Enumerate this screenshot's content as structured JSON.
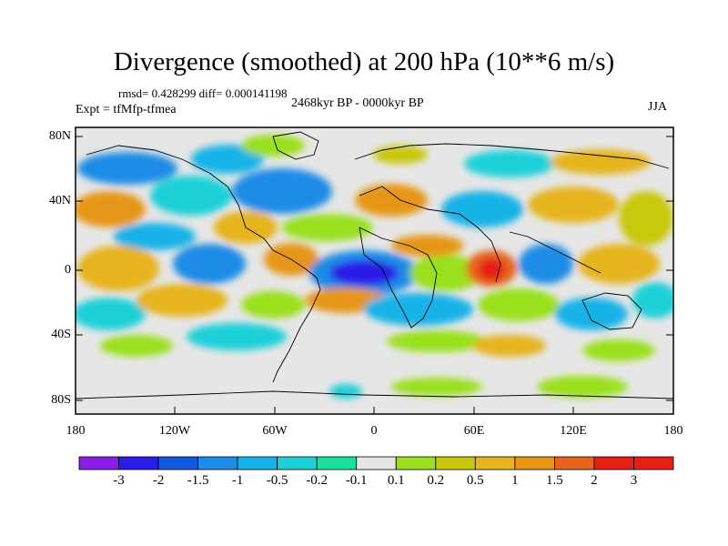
{
  "map": {
    "title": "Divergence (smoothed) at 200 hPa (10**6 m/s)",
    "stats": "rmsd= 0.428299 diff= 0.000141198",
    "experiment": "Expt = tfMfp-tfmea",
    "period": "2468kyr BP - 0000kyr BP",
    "season": "JJA",
    "lat_ticks": [
      "80N",
      "40N",
      "0",
      "40S",
      "80S"
    ],
    "lon_ticks": [
      "180",
      "120W",
      "60W",
      "0",
      "60E",
      "120E",
      "180"
    ],
    "colorbar": {
      "labels": [
        "-3",
        "-2",
        "-1.5",
        "-1",
        "-0.5",
        "-0.2",
        "-0.1",
        "0.1",
        "0.2",
        "0.5",
        "1",
        "1.5",
        "2",
        "3"
      ],
      "colors": [
        "#8a1ee6",
        "#2a1ee6",
        "#1458e0",
        "#1c8ce6",
        "#14b2e8",
        "#1ed0d8",
        "#18e0a0",
        "#e6e6e6",
        "#9ae01e",
        "#c8c80a",
        "#e6b41e",
        "#e69614",
        "#e6641e",
        "#e61e14",
        "#e61e14"
      ]
    }
  }
}
